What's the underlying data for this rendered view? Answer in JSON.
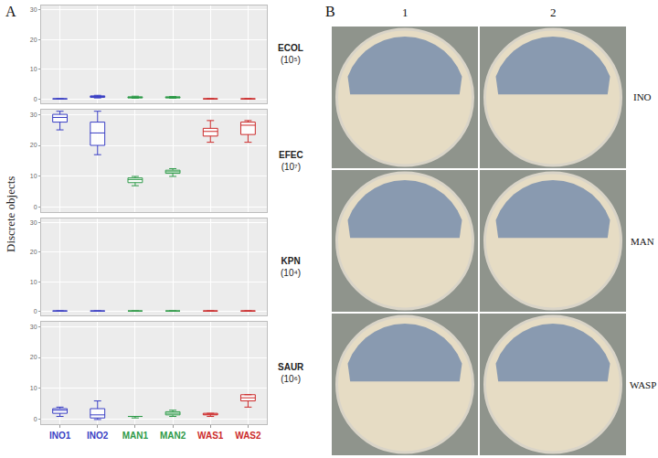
{
  "panel_labels": [
    "A",
    "B"
  ],
  "ylabel": "Discrete objects",
  "chart_data": [
    {
      "type": "box",
      "title": "ECOL",
      "subtitle": "(10⁵)",
      "categories": [
        "INO1",
        "INO2",
        "MAN1",
        "MAN2",
        "WAS1",
        "WAS2"
      ],
      "colors": [
        "#3a3fc4",
        "#3a3fc4",
        "#2e9a48",
        "#2e9a48",
        "#cc2b2b",
        "#cc2b2b"
      ],
      "min": [
        0,
        0.3,
        0.2,
        0.2,
        0,
        0
      ],
      "q1": [
        0,
        0.5,
        0.3,
        0.3,
        0,
        0
      ],
      "median": [
        0,
        0.8,
        0.5,
        0.5,
        0,
        0
      ],
      "q3": [
        0,
        1,
        0.7,
        0.7,
        0,
        0
      ],
      "max": [
        0,
        1.2,
        0.9,
        0.8,
        0,
        0
      ],
      "ylim": [
        -1.5,
        31.5
      ],
      "yticks": [
        0,
        10,
        20,
        30
      ],
      "grid": true,
      "tick_labels": "y"
    },
    {
      "type": "box",
      "title": "EFEC",
      "subtitle": "(10⁷)",
      "categories": [
        "INO1",
        "INO2",
        "MAN1",
        "MAN2",
        "WAS1",
        "WAS2"
      ],
      "colors": [
        "#3a3fc4",
        "#3a3fc4",
        "#2e9a48",
        "#2e9a48",
        "#cc2b2b",
        "#cc2b2b"
      ],
      "min": [
        25,
        17,
        7,
        10,
        21,
        21
      ],
      "q1": [
        27.5,
        20,
        8,
        11,
        23,
        23.5
      ],
      "median": [
        29,
        24,
        9,
        11.5,
        24.5,
        26.5
      ],
      "q3": [
        30,
        27.5,
        9.5,
        12,
        25.5,
        27.5
      ],
      "max": [
        31,
        31,
        10,
        12.5,
        28,
        28
      ],
      "ylim": [
        -1.5,
        31.5
      ],
      "yticks": [
        0,
        10,
        20,
        30
      ],
      "grid": true,
      "tick_labels": "y"
    },
    {
      "type": "box",
      "title": "KPN",
      "subtitle": "(10⁴)",
      "categories": [
        "INO1",
        "INO2",
        "MAN1",
        "MAN2",
        "WAS1",
        "WAS2"
      ],
      "colors": [
        "#3a3fc4",
        "#3a3fc4",
        "#2e9a48",
        "#2e9a48",
        "#cc2b2b",
        "#cc2b2b"
      ],
      "min": [
        0,
        0,
        0,
        0,
        0,
        0
      ],
      "q1": [
        0,
        0,
        0,
        0,
        0,
        0
      ],
      "median": [
        0,
        0,
        0,
        0,
        0,
        0
      ],
      "q3": [
        0,
        0,
        0,
        0,
        0,
        0
      ],
      "max": [
        0,
        0,
        0,
        0,
        0,
        0
      ],
      "ylim": [
        -1.5,
        31.5
      ],
      "yticks": [
        0,
        10,
        20,
        30
      ],
      "grid": true,
      "tick_labels": "y"
    },
    {
      "type": "box",
      "title": "SAUR",
      "subtitle": "(10⁶)",
      "categories": [
        "INO1",
        "INO2",
        "MAN1",
        "MAN2",
        "WAS1",
        "WAS2"
      ],
      "colors": [
        "#3a3fc4",
        "#3a3fc4",
        "#2e9a48",
        "#2e9a48",
        "#cc2b2b",
        "#cc2b2b"
      ],
      "min": [
        1,
        0,
        0.5,
        1,
        1,
        4
      ],
      "q1": [
        2,
        0.5,
        1,
        1.5,
        1.5,
        6
      ],
      "median": [
        3,
        1.5,
        1,
        2,
        1.5,
        7
      ],
      "q3": [
        3.5,
        3.5,
        1,
        2.5,
        2,
        8
      ],
      "max": [
        4,
        6,
        1,
        3,
        2,
        8
      ],
      "ylim": [
        -1.5,
        31.5
      ],
      "yticks": [
        0,
        10,
        20,
        30
      ],
      "grid": true,
      "tick_labels": true
    }
  ],
  "photo_grid": {
    "columns": [
      "1",
      "2"
    ],
    "rows": [
      "INO",
      "MAN",
      "WASP"
    ]
  }
}
